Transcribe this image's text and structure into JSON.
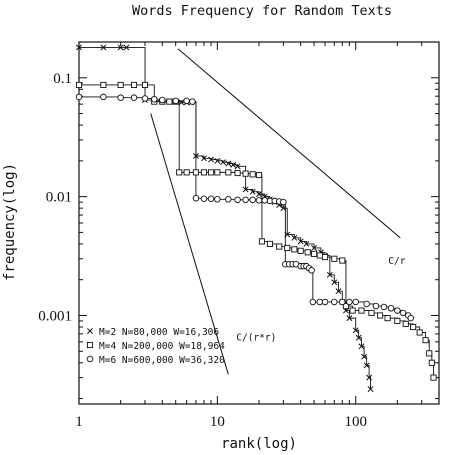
{
  "chart_data": {
    "type": "line",
    "title": "Words Frequency for Random Texts",
    "xlabel": "rank(log)",
    "ylabel": "frequency(log)",
    "x_scale": "log",
    "y_scale": "log",
    "xlim": [
      1,
      400
    ],
    "ylim": [
      0.00018,
      0.2
    ],
    "x_ticks": [
      {
        "value": 1,
        "label": "1"
      },
      {
        "value": 10,
        "label": "10"
      },
      {
        "value": 100,
        "label": "100"
      }
    ],
    "y_ticks": [
      {
        "value": 0.1,
        "label": "0.1"
      },
      {
        "value": 0.01,
        "label": "0.01"
      },
      {
        "value": 0.001,
        "label": "0.001"
      }
    ],
    "grid": false,
    "legend_position": "bottom-left",
    "series": [
      {
        "name": "M=2 N=80,000 W=16,306",
        "marker": "cross",
        "points": [
          [
            1,
            0.18
          ],
          [
            1.5,
            0.18
          ],
          [
            2,
            0.18
          ],
          [
            2.2,
            0.18
          ],
          [
            3,
            0.065
          ],
          [
            3.5,
            0.064
          ],
          [
            4,
            0.063
          ],
          [
            4.5,
            0.063
          ],
          [
            5,
            0.063
          ],
          [
            5.5,
            0.062
          ],
          [
            6,
            0.062
          ],
          [
            6.5,
            0.062
          ],
          [
            7,
            0.022
          ],
          [
            8,
            0.021
          ],
          [
            9,
            0.0205
          ],
          [
            10,
            0.02
          ],
          [
            11,
            0.0195
          ],
          [
            12,
            0.019
          ],
          [
            13,
            0.0185
          ],
          [
            14,
            0.018
          ],
          [
            16,
            0.0115
          ],
          [
            18,
            0.011
          ],
          [
            20,
            0.0105
          ],
          [
            22,
            0.01
          ],
          [
            24,
            0.0095
          ],
          [
            26,
            0.009
          ],
          [
            28,
            0.0085
          ],
          [
            30,
            0.008
          ],
          [
            32,
            0.0048
          ],
          [
            36,
            0.0045
          ],
          [
            40,
            0.0042
          ],
          [
            44,
            0.004
          ],
          [
            50,
            0.0037
          ],
          [
            56,
            0.0034
          ],
          [
            60,
            0.0032
          ],
          [
            65,
            0.0022
          ],
          [
            70,
            0.0019
          ],
          [
            75,
            0.0016
          ],
          [
            80,
            0.0013
          ],
          [
            85,
            0.0011
          ],
          [
            90,
            0.00095
          ],
          [
            100,
            0.00075
          ],
          [
            105,
            0.00065
          ],
          [
            110,
            0.00055
          ],
          [
            115,
            0.00045
          ],
          [
            120,
            0.00038
          ],
          [
            125,
            0.0003
          ],
          [
            128,
            0.00024
          ]
        ]
      },
      {
        "name": "M=4 N=200,000 W=18,964",
        "marker": "square",
        "points": [
          [
            1,
            0.087
          ],
          [
            1.5,
            0.087
          ],
          [
            2,
            0.087
          ],
          [
            2.5,
            0.087
          ],
          [
            3,
            0.087
          ],
          [
            3.5,
            0.063
          ],
          [
            4,
            0.063
          ],
          [
            4.5,
            0.063
          ],
          [
            5,
            0.063
          ],
          [
            5.3,
            0.016
          ],
          [
            6,
            0.016
          ],
          [
            7,
            0.016
          ],
          [
            8,
            0.016
          ],
          [
            9,
            0.016
          ],
          [
            10,
            0.016
          ],
          [
            12,
            0.016
          ],
          [
            14,
            0.0158
          ],
          [
            16,
            0.0156
          ],
          [
            18,
            0.0154
          ],
          [
            20,
            0.0152
          ],
          [
            21,
            0.0042
          ],
          [
            24,
            0.004
          ],
          [
            28,
            0.0038
          ],
          [
            32,
            0.0037
          ],
          [
            36,
            0.0036
          ],
          [
            40,
            0.0035
          ],
          [
            45,
            0.0034
          ],
          [
            50,
            0.0033
          ],
          [
            55,
            0.0032
          ],
          [
            60,
            0.0031
          ],
          [
            70,
            0.003
          ],
          [
            80,
            0.0029
          ],
          [
            85,
            0.0012
          ],
          [
            95,
            0.0011
          ],
          [
            110,
            0.0011
          ],
          [
            130,
            0.00105
          ],
          [
            150,
            0.001
          ],
          [
            170,
            0.00095
          ],
          [
            200,
            0.0009
          ],
          [
            230,
            0.00085
          ],
          [
            260,
            0.0008
          ],
          [
            290,
            0.00072
          ],
          [
            320,
            0.00062
          ],
          [
            340,
            0.00048
          ],
          [
            355,
            0.0004
          ],
          [
            365,
            0.0003
          ]
        ]
      },
      {
        "name": "M=6 N=600,000 W=36,320",
        "marker": "circle",
        "points": [
          [
            1,
            0.069
          ],
          [
            1.5,
            0.069
          ],
          [
            2,
            0.068
          ],
          [
            2.5,
            0.068
          ],
          [
            3,
            0.067
          ],
          [
            3.5,
            0.066
          ],
          [
            4,
            0.065
          ],
          [
            5,
            0.064
          ],
          [
            6,
            0.064
          ],
          [
            6.6,
            0.063
          ],
          [
            7,
            0.0097
          ],
          [
            8,
            0.0096
          ],
          [
            9,
            0.0096
          ],
          [
            10,
            0.0095
          ],
          [
            12,
            0.0095
          ],
          [
            14,
            0.0094
          ],
          [
            16,
            0.0094
          ],
          [
            18,
            0.0094
          ],
          [
            20,
            0.0093
          ],
          [
            22,
            0.0093
          ],
          [
            24,
            0.0092
          ],
          [
            26,
            0.0092
          ],
          [
            28,
            0.0091
          ],
          [
            30,
            0.009
          ],
          [
            31,
            0.0027
          ],
          [
            33,
            0.0027
          ],
          [
            35,
            0.0027
          ],
          [
            37,
            0.0027
          ],
          [
            40,
            0.0026
          ],
          [
            42,
            0.0026
          ],
          [
            44,
            0.0026
          ],
          [
            46,
            0.0025
          ],
          [
            48,
            0.0024
          ],
          [
            49,
            0.0013
          ],
          [
            55,
            0.0013
          ],
          [
            60,
            0.0013
          ],
          [
            70,
            0.0013
          ],
          [
            80,
            0.0013
          ],
          [
            90,
            0.0013
          ],
          [
            100,
            0.0013
          ],
          [
            120,
            0.00125
          ],
          [
            140,
            0.0012
          ],
          [
            160,
            0.00118
          ],
          [
            180,
            0.00115
          ],
          [
            200,
            0.0011
          ],
          [
            220,
            0.00105
          ],
          [
            240,
            0.001
          ],
          [
            250,
            0.00095
          ]
        ]
      }
    ],
    "reference_lines": [
      {
        "label": "C/r",
        "points": [
          [
            5.2,
            0.175
          ],
          [
            210,
            0.0045
          ]
        ]
      },
      {
        "label": "C/(r*r)",
        "points": [
          [
            3.3,
            0.05
          ],
          [
            12,
            0.00032
          ]
        ]
      }
    ]
  }
}
